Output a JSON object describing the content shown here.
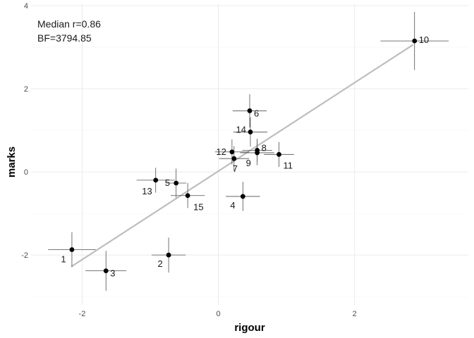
{
  "chart_data": {
    "type": "scatter",
    "xlabel": "rigour",
    "ylabel": "marks",
    "xlim": [
      -2.75,
      3.67
    ],
    "ylim": [
      -3.2,
      4.05
    ],
    "x_ticks": [
      -2,
      0,
      2
    ],
    "y_ticks": [
      -2,
      0,
      2,
      4
    ],
    "x_tick_labels": [
      "-2",
      "0",
      "2"
    ],
    "y_tick_labels": [
      "-2",
      "0",
      "2",
      "4"
    ],
    "grid": true,
    "annotations": [
      "Median r=0.86",
      "BF=3794.85"
    ],
    "colors": {
      "point": "#000000",
      "errorbar": "#4d4d4d",
      "fit_line": "#bebebe",
      "grid_major": "#ebebeb",
      "grid_minor": "#f5f5f5"
    },
    "points": [
      {
        "label": "1",
        "x": -2.15,
        "y": -1.87,
        "xerr": 0.35,
        "yerr": 0.42
      },
      {
        "label": "2",
        "x": -0.73,
        "y": -2.0,
        "xerr": 0.25,
        "yerr": 0.42
      },
      {
        "label": "3",
        "x": -1.65,
        "y": -2.38,
        "xerr": 0.3,
        "yerr": 0.48
      },
      {
        "label": "4",
        "x": 0.36,
        "y": -0.59,
        "xerr": 0.25,
        "yerr": 0.35
      },
      {
        "label": "5",
        "x": -0.62,
        "y": -0.27,
        "xerr": 0.15,
        "yerr": 0.35
      },
      {
        "label": "6",
        "x": 0.46,
        "y": 1.47,
        "xerr": 0.25,
        "yerr": 0.4
      },
      {
        "label": "7",
        "x": 0.23,
        "y": 0.32,
        "xerr": 0.22,
        "yerr": 0.3
      },
      {
        "label": "8",
        "x": 0.57,
        "y": 0.52,
        "xerr": 0.22,
        "yerr": 0.28
      },
      {
        "label": "9",
        "x": 0.57,
        "y": 0.46,
        "xerr": 0.25,
        "yerr": 0.3
      },
      {
        "label": "10",
        "x": 2.88,
        "y": 3.15,
        "xerr": 0.5,
        "yerr": 0.7
      },
      {
        "label": "11",
        "x": 0.89,
        "y": 0.42,
        "xerr": 0.22,
        "yerr": 0.3
      },
      {
        "label": "12",
        "x": 0.2,
        "y": 0.48,
        "xerr": 0.25,
        "yerr": 0.3
      },
      {
        "label": "13",
        "x": -0.92,
        "y": -0.2,
        "xerr": 0.28,
        "yerr": 0.3
      },
      {
        "label": "14",
        "x": 0.47,
        "y": 0.96,
        "xerr": 0.25,
        "yerr": 0.35
      },
      {
        "label": "15",
        "x": -0.45,
        "y": -0.57,
        "xerr": 0.25,
        "yerr": 0.3
      }
    ],
    "fit_line": {
      "x": [
        -2.15,
        2.85
      ],
      "y": [
        -2.27,
        3.05
      ]
    }
  }
}
